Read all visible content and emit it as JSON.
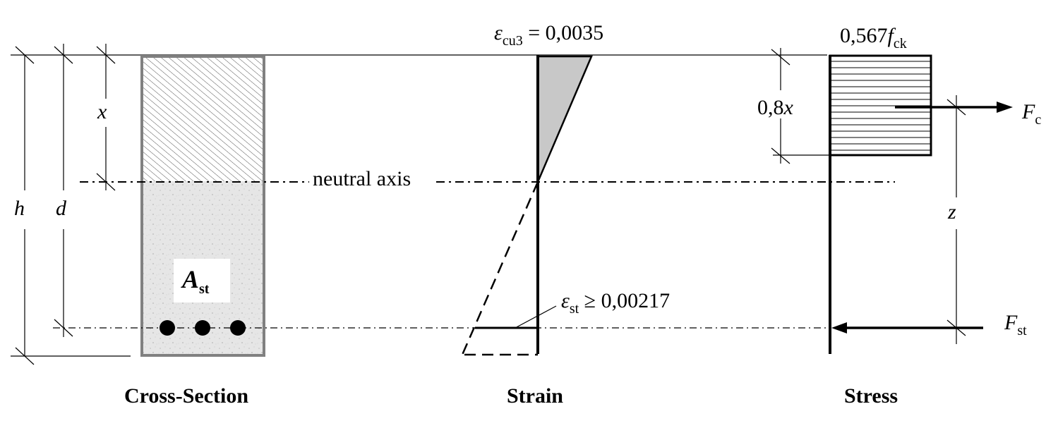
{
  "labels": {
    "strain_top": {
      "symbol": "ε",
      "sub": "cu3",
      "value": " = 0,0035"
    },
    "stress_top": {
      "value": "0,567",
      "symbol": "f",
      "sub": "ck"
    },
    "stress_block_depth": {
      "value": "0,8",
      "symbol": "x"
    },
    "force_compression": {
      "symbol": "F",
      "sub": "c"
    },
    "force_tension": {
      "symbol": "F",
      "sub": "st"
    },
    "lever_arm": "z",
    "neutral_axis_depth": "x",
    "section_height": "h",
    "effective_depth": "d",
    "steel_area": {
      "symbol": "A",
      "sub": "st"
    },
    "neutral_axis": "neutral axis",
    "steel_strain": {
      "symbol": "ε",
      "sub": "st",
      "value": " ≥ 0,00217"
    }
  },
  "panels": {
    "cross_section": "Cross-Section",
    "strain": "Strain",
    "stress": "Stress"
  },
  "colors": {
    "ink": "#000000",
    "section_outline": "#808080",
    "concrete_fill": "#e4e4e4",
    "strain_fill": "#c8c8c8"
  }
}
